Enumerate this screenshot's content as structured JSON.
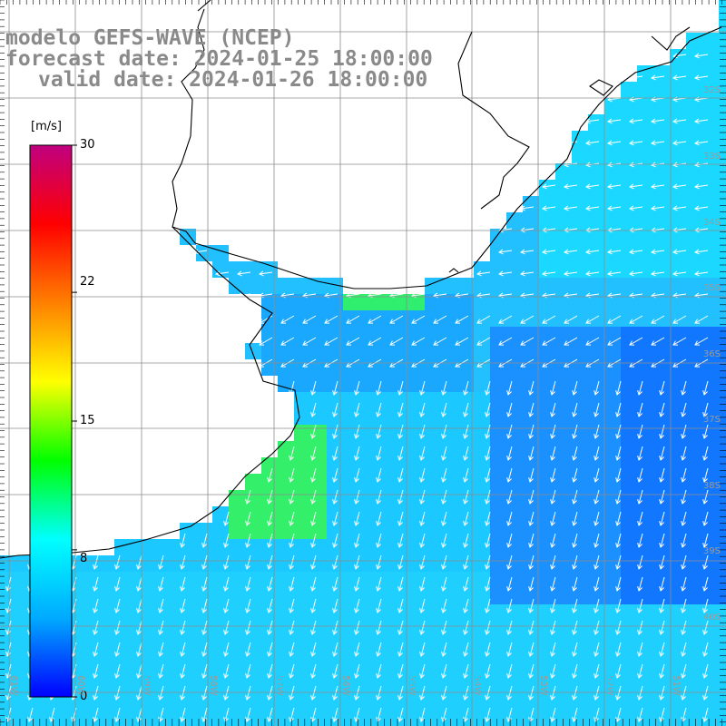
{
  "title": {
    "line1": "modelo GEFS-WAVE (NCEP)",
    "line2": "forecast date: 2024-01-25 18:00:00",
    "line3": "valid date: 2024-01-26 18:00:00"
  },
  "colorbar": {
    "unit": "[m/s]",
    "ticks": [
      "30",
      "22",
      "15",
      "8",
      "0"
    ],
    "tick_values": [
      30,
      22,
      15,
      8,
      0
    ],
    "range": [
      0,
      30
    ],
    "colors": [
      "#0000ff",
      "#00aaff",
      "#00ffff",
      "#00ff00",
      "#ffff00",
      "#ff8000",
      "#ff0000",
      "#c00080"
    ]
  },
  "lat_labels": [
    "32S",
    "33S",
    "34S",
    "35S",
    "36S",
    "37S",
    "38S",
    "39S",
    "40S"
  ],
  "lon_labels": [
    "61W",
    "60W",
    "59W",
    "58W",
    "57W",
    "56W",
    "55W",
    "54W",
    "53W",
    "52W",
    "51W"
  ],
  "colors": {
    "land": "#ffffff",
    "gridline": "#8c8c8c",
    "coastline": "#000000",
    "vector": "#ffffff",
    "text": "#8a8a8a"
  }
}
